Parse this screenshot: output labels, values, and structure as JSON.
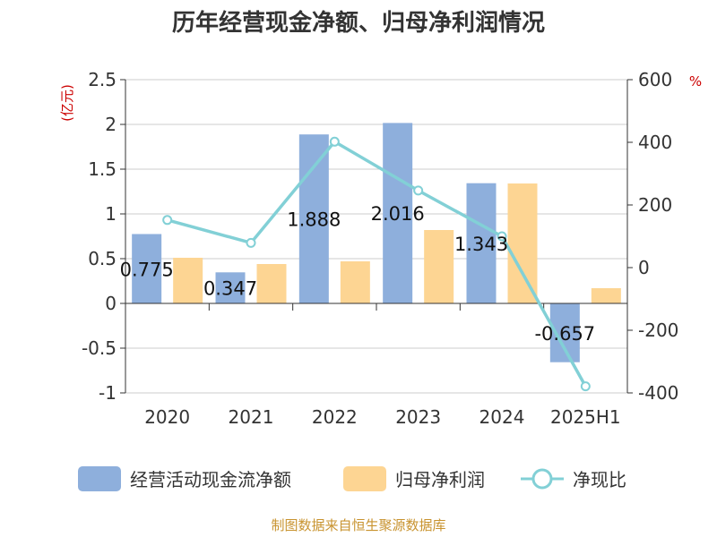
{
  "chart_data": {
    "type": "bar",
    "title": "历年经营现金净额、归母净利润情况",
    "categories": [
      "2020",
      "2021",
      "2022",
      "2023",
      "2024",
      "2025H1"
    ],
    "left_axis": {
      "unit_label": "(亿元)",
      "ylim": [
        -1,
        2.5
      ],
      "ticks": [
        2.5,
        2,
        1.5,
        1,
        0.5,
        0,
        -0.5,
        -1
      ],
      "tick_labels": [
        "2.5",
        "2",
        "1.5",
        "1",
        "0.5",
        "0",
        "-0.5",
        "-1"
      ]
    },
    "right_axis": {
      "unit_label": "%",
      "ylim": [
        -400,
        600
      ],
      "ticks": [
        600,
        400,
        200,
        0,
        -200,
        -400
      ],
      "tick_labels": [
        "600",
        "400",
        "200",
        "0",
        "-200",
        "-400"
      ]
    },
    "series": [
      {
        "name": "经营活动现金流净额",
        "type": "bar",
        "axis": "left",
        "color": "#8eafdc",
        "values": [
          0.775,
          0.347,
          1.888,
          2.016,
          1.343,
          -0.657
        ],
        "labels": [
          "0.775",
          "0.347",
          "1.888",
          "2.016",
          "1.343",
          "-0.657"
        ]
      },
      {
        "name": "归母净利润",
        "type": "bar",
        "axis": "left",
        "color": "#fdd593",
        "values": [
          0.51,
          0.44,
          0.47,
          0.82,
          1.34,
          0.17
        ]
      },
      {
        "name": "净现比",
        "type": "line",
        "axis": "right",
        "color": "#82d0d6",
        "values": [
          152,
          79,
          402,
          246,
          100,
          -379
        ]
      }
    ],
    "grid": true,
    "legend": "bottom-center"
  },
  "source_note": "制图数据来自恒生聚源数据库",
  "colors": {
    "title": "#333333",
    "axis_text": "#333333",
    "unit_red": "#cc0000",
    "grid": "#cccccc",
    "source": "#c8932f"
  }
}
